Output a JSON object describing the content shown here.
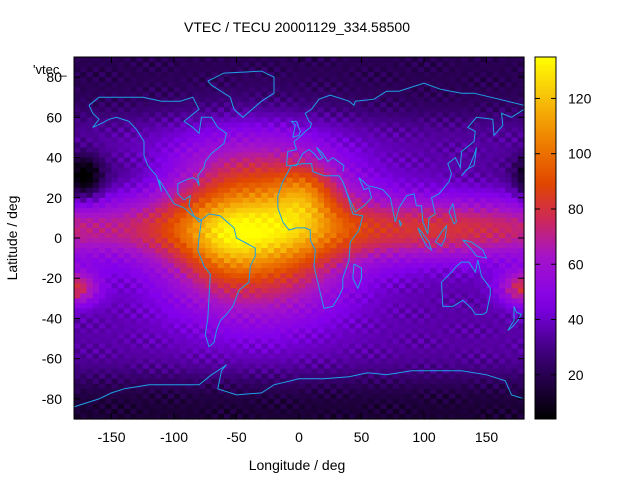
{
  "chart_data": {
    "type": "heatmap",
    "title": "VTEC / TECU 20001129_334.58500",
    "xlabel": "Longitude / deg",
    "ylabel": "Latitude / deg",
    "key_label": "'vtec_",
    "xlim": [
      -180,
      180
    ],
    "ylim": [
      -90,
      90
    ],
    "xticks": [
      "-150",
      "-100",
      "-50",
      "0",
      "50",
      "100",
      "150"
    ],
    "xtick_values": [
      -150,
      -100,
      -50,
      0,
      50,
      100,
      150
    ],
    "yticks": [
      "-80",
      "-60",
      "-40",
      "-20",
      "0",
      "20",
      "40",
      "60",
      "80"
    ],
    "ytick_values": [
      -80,
      -60,
      -40,
      -20,
      0,
      20,
      40,
      60,
      80
    ],
    "colorbar": {
      "range": [
        4,
        135
      ],
      "ticks": [
        "20",
        "40",
        "60",
        "80",
        "100",
        "120"
      ],
      "tick_values": [
        20,
        40,
        60,
        80,
        100,
        120
      ],
      "palette": "black-purple-red-orange-yellow"
    },
    "grid": false,
    "features": {
      "background_vtec": 35,
      "equatorial_band": {
        "center_lat": 4,
        "peak_vtec": 70
      },
      "main_enhancement": {
        "center_lon": -35,
        "center_lat": 5,
        "peak_vtec": 112
      },
      "north_africa_peak": {
        "lon": 5,
        "lat": 22,
        "vtec": 118
      },
      "south_pacific_peak": {
        "lon": -180,
        "lat": -25,
        "vtec": 78
      },
      "southeast_pacific_peak": {
        "lon": 180,
        "lat": -20,
        "vtec": 72
      },
      "night_minimum": {
        "lon": -172,
        "lat": 30,
        "vtec": 6
      },
      "arctic_low": {
        "lat": 75,
        "vtec": 20
      },
      "antarctic_low": {
        "lat": -82,
        "vtec": 14
      }
    },
    "coastline_color": "#1fa0e6"
  }
}
